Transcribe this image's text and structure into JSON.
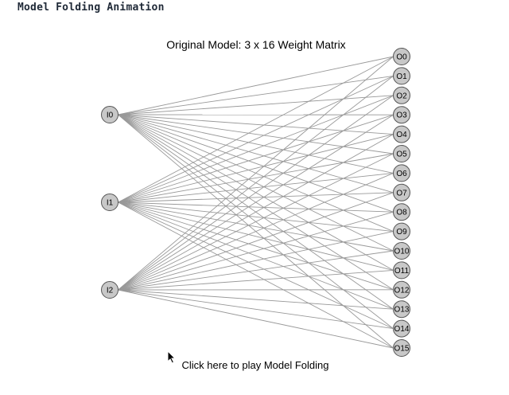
{
  "header": {
    "title": "Model Folding Animation"
  },
  "diagram": {
    "title": "Original Model: 3 x 16 Weight Matrix",
    "inputs": [
      "I0",
      "I1",
      "I2"
    ],
    "outputs": [
      "O0",
      "O1",
      "O2",
      "O3",
      "O4",
      "O5",
      "O6",
      "O7",
      "O8",
      "O9",
      "O10",
      "O11",
      "O12",
      "O13",
      "O14",
      "O15"
    ],
    "colors": {
      "node_fill": "#c8c8c8",
      "node_stroke": "#555555",
      "edge": "#999999"
    }
  },
  "controls": {
    "play_label": "Click here to play Model Folding"
  }
}
